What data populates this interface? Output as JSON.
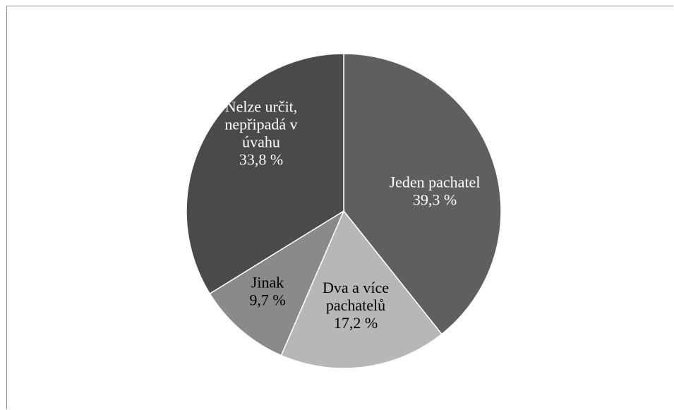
{
  "chart_data": {
    "type": "pie",
    "title": "",
    "start_angle_deg": 0,
    "direction": "clockwise",
    "slices": [
      {
        "label_lines": [
          "Jeden pachatel"
        ],
        "value_label": "39,3 %",
        "value": 39.3,
        "color": "#5f5f5f",
        "text_color": "#ffffff"
      },
      {
        "label_lines": [
          "Dva a více",
          "pachatelů"
        ],
        "value_label": "17,2 %",
        "value": 17.2,
        "color": "#b7b7b7",
        "text_color": "#000000"
      },
      {
        "label_lines": [
          "Jinak"
        ],
        "value_label": "9,7 %",
        "value": 9.7,
        "color": "#8a8a8a",
        "text_color": "#000000"
      },
      {
        "label_lines": [
          "Nelze určit,",
          "nepřipadá v",
          "úvahu"
        ],
        "value_label": "33,8 %",
        "value": 33.8,
        "color": "#4a4a4a",
        "text_color": "#ffffff"
      }
    ],
    "slice_border_color": "#ffffff",
    "legend": "none"
  }
}
